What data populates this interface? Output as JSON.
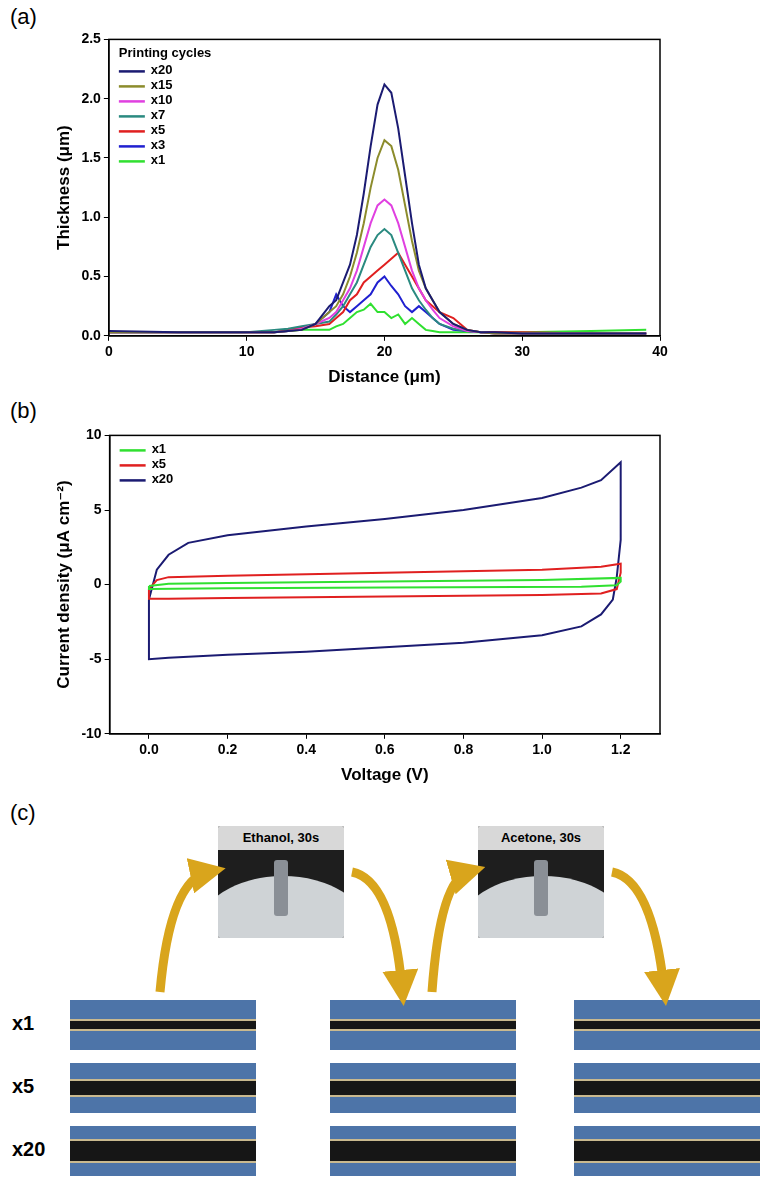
{
  "chart_data": [
    {
      "panel": "(a)",
      "type": "line",
      "x_label": "Distance (μm)",
      "y_label": "Thickness (μm)",
      "legend_title": "Printing cycles",
      "x": [
        0,
        5,
        10,
        12,
        13,
        14,
        15,
        16,
        16.5,
        17,
        17.5,
        18,
        18.5,
        19,
        19.5,
        20,
        20.5,
        21,
        21.5,
        22,
        22.5,
        23,
        23.5,
        24,
        25,
        26,
        27,
        28,
        30,
        35,
        39
      ],
      "series": [
        {
          "name": "x20",
          "color": "#1b1b72",
          "values": [
            0.04,
            0.03,
            0.03,
            0.03,
            0.04,
            0.05,
            0.1,
            0.25,
            0.3,
            0.45,
            0.6,
            0.85,
            1.2,
            1.6,
            1.95,
            2.12,
            2.05,
            1.75,
            1.35,
            0.95,
            0.6,
            0.4,
            0.3,
            0.2,
            0.1,
            0.05,
            0.03,
            0.03,
            0.02,
            0.02,
            0.02
          ]
        },
        {
          "name": "x15",
          "color": "#8c8c2c",
          "values": [
            0.03,
            0.03,
            0.03,
            0.03,
            0.04,
            0.05,
            0.1,
            0.2,
            0.25,
            0.35,
            0.5,
            0.7,
            0.95,
            1.25,
            1.5,
            1.65,
            1.6,
            1.4,
            1.1,
            0.8,
            0.55,
            0.4,
            0.3,
            0.2,
            0.1,
            0.05,
            0.03,
            0.02,
            0.02,
            0.02,
            0.02
          ]
        },
        {
          "name": "x10",
          "color": "#e040e0",
          "values": [
            0.03,
            0.03,
            0.03,
            0.03,
            0.04,
            0.06,
            0.1,
            0.15,
            0.2,
            0.3,
            0.4,
            0.55,
            0.75,
            0.95,
            1.1,
            1.15,
            1.1,
            0.95,
            0.75,
            0.55,
            0.4,
            0.3,
            0.22,
            0.15,
            0.08,
            0.04,
            0.03,
            0.02,
            0.02,
            0.02,
            0.02
          ]
        },
        {
          "name": "x7",
          "color": "#2a8a80",
          "values": [
            0.03,
            0.03,
            0.03,
            0.05,
            0.06,
            0.08,
            0.1,
            0.12,
            0.18,
            0.25,
            0.35,
            0.45,
            0.6,
            0.75,
            0.85,
            0.9,
            0.85,
            0.7,
            0.55,
            0.4,
            0.3,
            0.22,
            0.15,
            0.1,
            0.06,
            0.04,
            0.03,
            0.02,
            0.02,
            0.02,
            0.02
          ]
        },
        {
          "name": "x5",
          "color": "#e02020",
          "values": [
            0.03,
            0.03,
            0.03,
            0.03,
            0.05,
            0.07,
            0.08,
            0.1,
            0.15,
            0.2,
            0.3,
            0.35,
            0.45,
            0.5,
            0.55,
            0.6,
            0.65,
            0.7,
            0.6,
            0.5,
            0.4,
            0.3,
            0.25,
            0.2,
            0.15,
            0.05,
            0.03,
            0.03,
            0.03,
            0.02,
            0.02
          ]
        },
        {
          "name": "x3",
          "color": "#2020d0",
          "values": [
            0.03,
            0.03,
            0.03,
            0.03,
            0.04,
            0.06,
            0.1,
            0.2,
            0.35,
            0.25,
            0.2,
            0.25,
            0.3,
            0.35,
            0.45,
            0.5,
            0.42,
            0.35,
            0.25,
            0.2,
            0.25,
            0.2,
            0.15,
            0.1,
            0.05,
            0.04,
            0.03,
            0.03,
            0.02,
            0.02,
            0.02
          ]
        },
        {
          "name": "x1",
          "color": "#30e030",
          "values": [
            0.03,
            0.03,
            0.03,
            0.03,
            0.04,
            0.05,
            0.05,
            0.05,
            0.08,
            0.1,
            0.15,
            0.2,
            0.22,
            0.27,
            0.2,
            0.2,
            0.15,
            0.18,
            0.1,
            0.15,
            0.1,
            0.05,
            0.04,
            0.03,
            0.03,
            0.03,
            0.03,
            0.03,
            0.03,
            0.04,
            0.05
          ]
        }
      ],
      "xlim": [
        0,
        40
      ],
      "xticks": [
        0,
        10,
        20,
        30,
        40
      ],
      "ylim": [
        0,
        2.5
      ],
      "yticks": [
        {
          "value": 0,
          "label": "0.0"
        },
        0.5,
        {
          "value": 1,
          "label": "1.0"
        },
        1.5,
        {
          "value": 2,
          "label": "2.0"
        },
        2.5
      ],
      "grid": false,
      "legend": "upper left"
    },
    {
      "panel": "(b)",
      "type": "line",
      "x_label": "Voltage (V)",
      "y_label": "Current density (μA cm⁻²)",
      "series": [
        {
          "name": "x1",
          "color": "#30e030",
          "x": [
            0,
            0.05,
            0.2,
            0.6,
            1.0,
            1.2,
            1.2,
            1.19,
            1.1,
            0.6,
            0.2,
            0,
            0
          ],
          "values": [
            -0.1,
            0.05,
            0.1,
            0.2,
            0.3,
            0.45,
            0.2,
            -0.05,
            -0.15,
            -0.2,
            -0.25,
            -0.3,
            -0.1
          ]
        },
        {
          "name": "x5",
          "color": "#e02020",
          "x": [
            0,
            0.02,
            0.05,
            0.2,
            0.6,
            1.0,
            1.15,
            1.2,
            1.2,
            1.19,
            1.15,
            1.0,
            0.6,
            0.2,
            0.05,
            0,
            0
          ],
          "values": [
            -0.3,
            0.3,
            0.5,
            0.6,
            0.8,
            1.0,
            1.2,
            1.4,
            0.8,
            -0.3,
            -0.6,
            -0.7,
            -0.8,
            -0.9,
            -0.95,
            -0.95,
            -0.3
          ]
        },
        {
          "name": "x20",
          "color": "#1b1b72",
          "x": [
            0,
            0.02,
            0.05,
            0.1,
            0.2,
            0.4,
            0.6,
            0.8,
            1.0,
            1.1,
            1.15,
            1.2,
            1.2,
            1.19,
            1.18,
            1.15,
            1.1,
            1.0,
            0.8,
            0.6,
            0.4,
            0.2,
            0.05,
            0,
            0
          ],
          "values": [
            -1.0,
            1.0,
            2.0,
            2.8,
            3.3,
            3.9,
            4.4,
            5.0,
            5.8,
            6.5,
            7.0,
            8.2,
            3.0,
            0.5,
            -1.0,
            -2.0,
            -2.8,
            -3.4,
            -3.9,
            -4.2,
            -4.5,
            -4.7,
            -4.9,
            -5.0,
            -1.0
          ]
        }
      ],
      "xlim": [
        -0.1,
        1.3
      ],
      "xticks": [
        {
          "value": 0,
          "label": "0.0"
        },
        0.2,
        0.4,
        0.6,
        0.8,
        {
          "value": 1,
          "label": "1.0"
        },
        1.2
      ],
      "ylim": [
        -10,
        10
      ],
      "yticks": [
        -10,
        -5,
        0,
        5,
        10
      ],
      "grid": false,
      "legend": "upper left"
    }
  ],
  "photo_panel": {
    "panel": "(c)",
    "treatments": [
      "Ethanol, 30s",
      "Acetone, 30s"
    ],
    "rows": [
      "x1",
      "x5",
      "x20"
    ]
  }
}
